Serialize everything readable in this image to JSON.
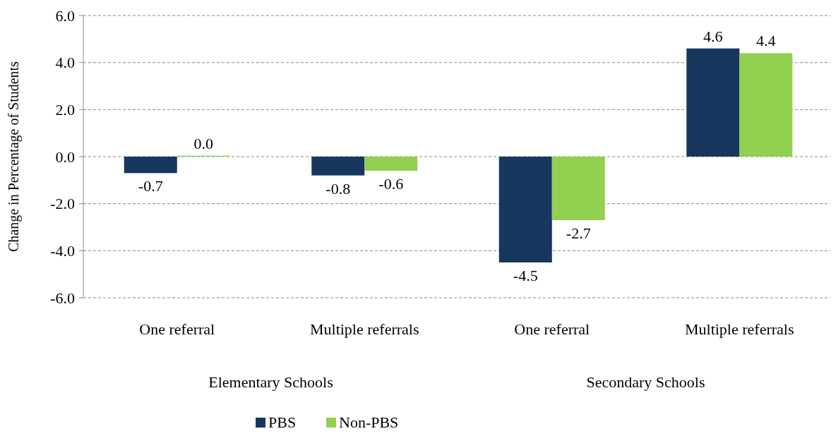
{
  "chart_data": {
    "type": "bar",
    "ylabel": "Change in Percentage of Students",
    "categories": [
      "One referral",
      "Multiple referrals",
      "One referral",
      "Multiple referrals"
    ],
    "series": [
      {
        "name": "PBS",
        "color": "#17375e",
        "values": [
          -0.7,
          -0.8,
          -4.5,
          4.6
        ],
        "value_labels": [
          "-0.7",
          "-0.8",
          "-4.5",
          "4.6"
        ]
      },
      {
        "name": "Non-PBS",
        "color": "#92d050",
        "values": [
          0.04,
          -0.6,
          -2.7,
          4.4
        ],
        "value_labels": [
          "0.0",
          "-0.6",
          "-2.7",
          "4.4"
        ]
      }
    ],
    "annotations": [
      "Elementary Schools",
      "Secondary Schools"
    ],
    "ylim": [
      -6,
      6
    ],
    "yticks": [
      {
        "value": -6,
        "label": "-6.0"
      },
      {
        "value": -4,
        "label": "-4.0"
      },
      {
        "value": -2,
        "label": "-2.0"
      },
      {
        "value": 0,
        "label": "0.0"
      },
      {
        "value": 2,
        "label": "2.0"
      },
      {
        "value": 4,
        "label": "4.0"
      },
      {
        "value": 6,
        "label": "6.0"
      }
    ],
    "grid": "y",
    "legend": "bottom"
  }
}
